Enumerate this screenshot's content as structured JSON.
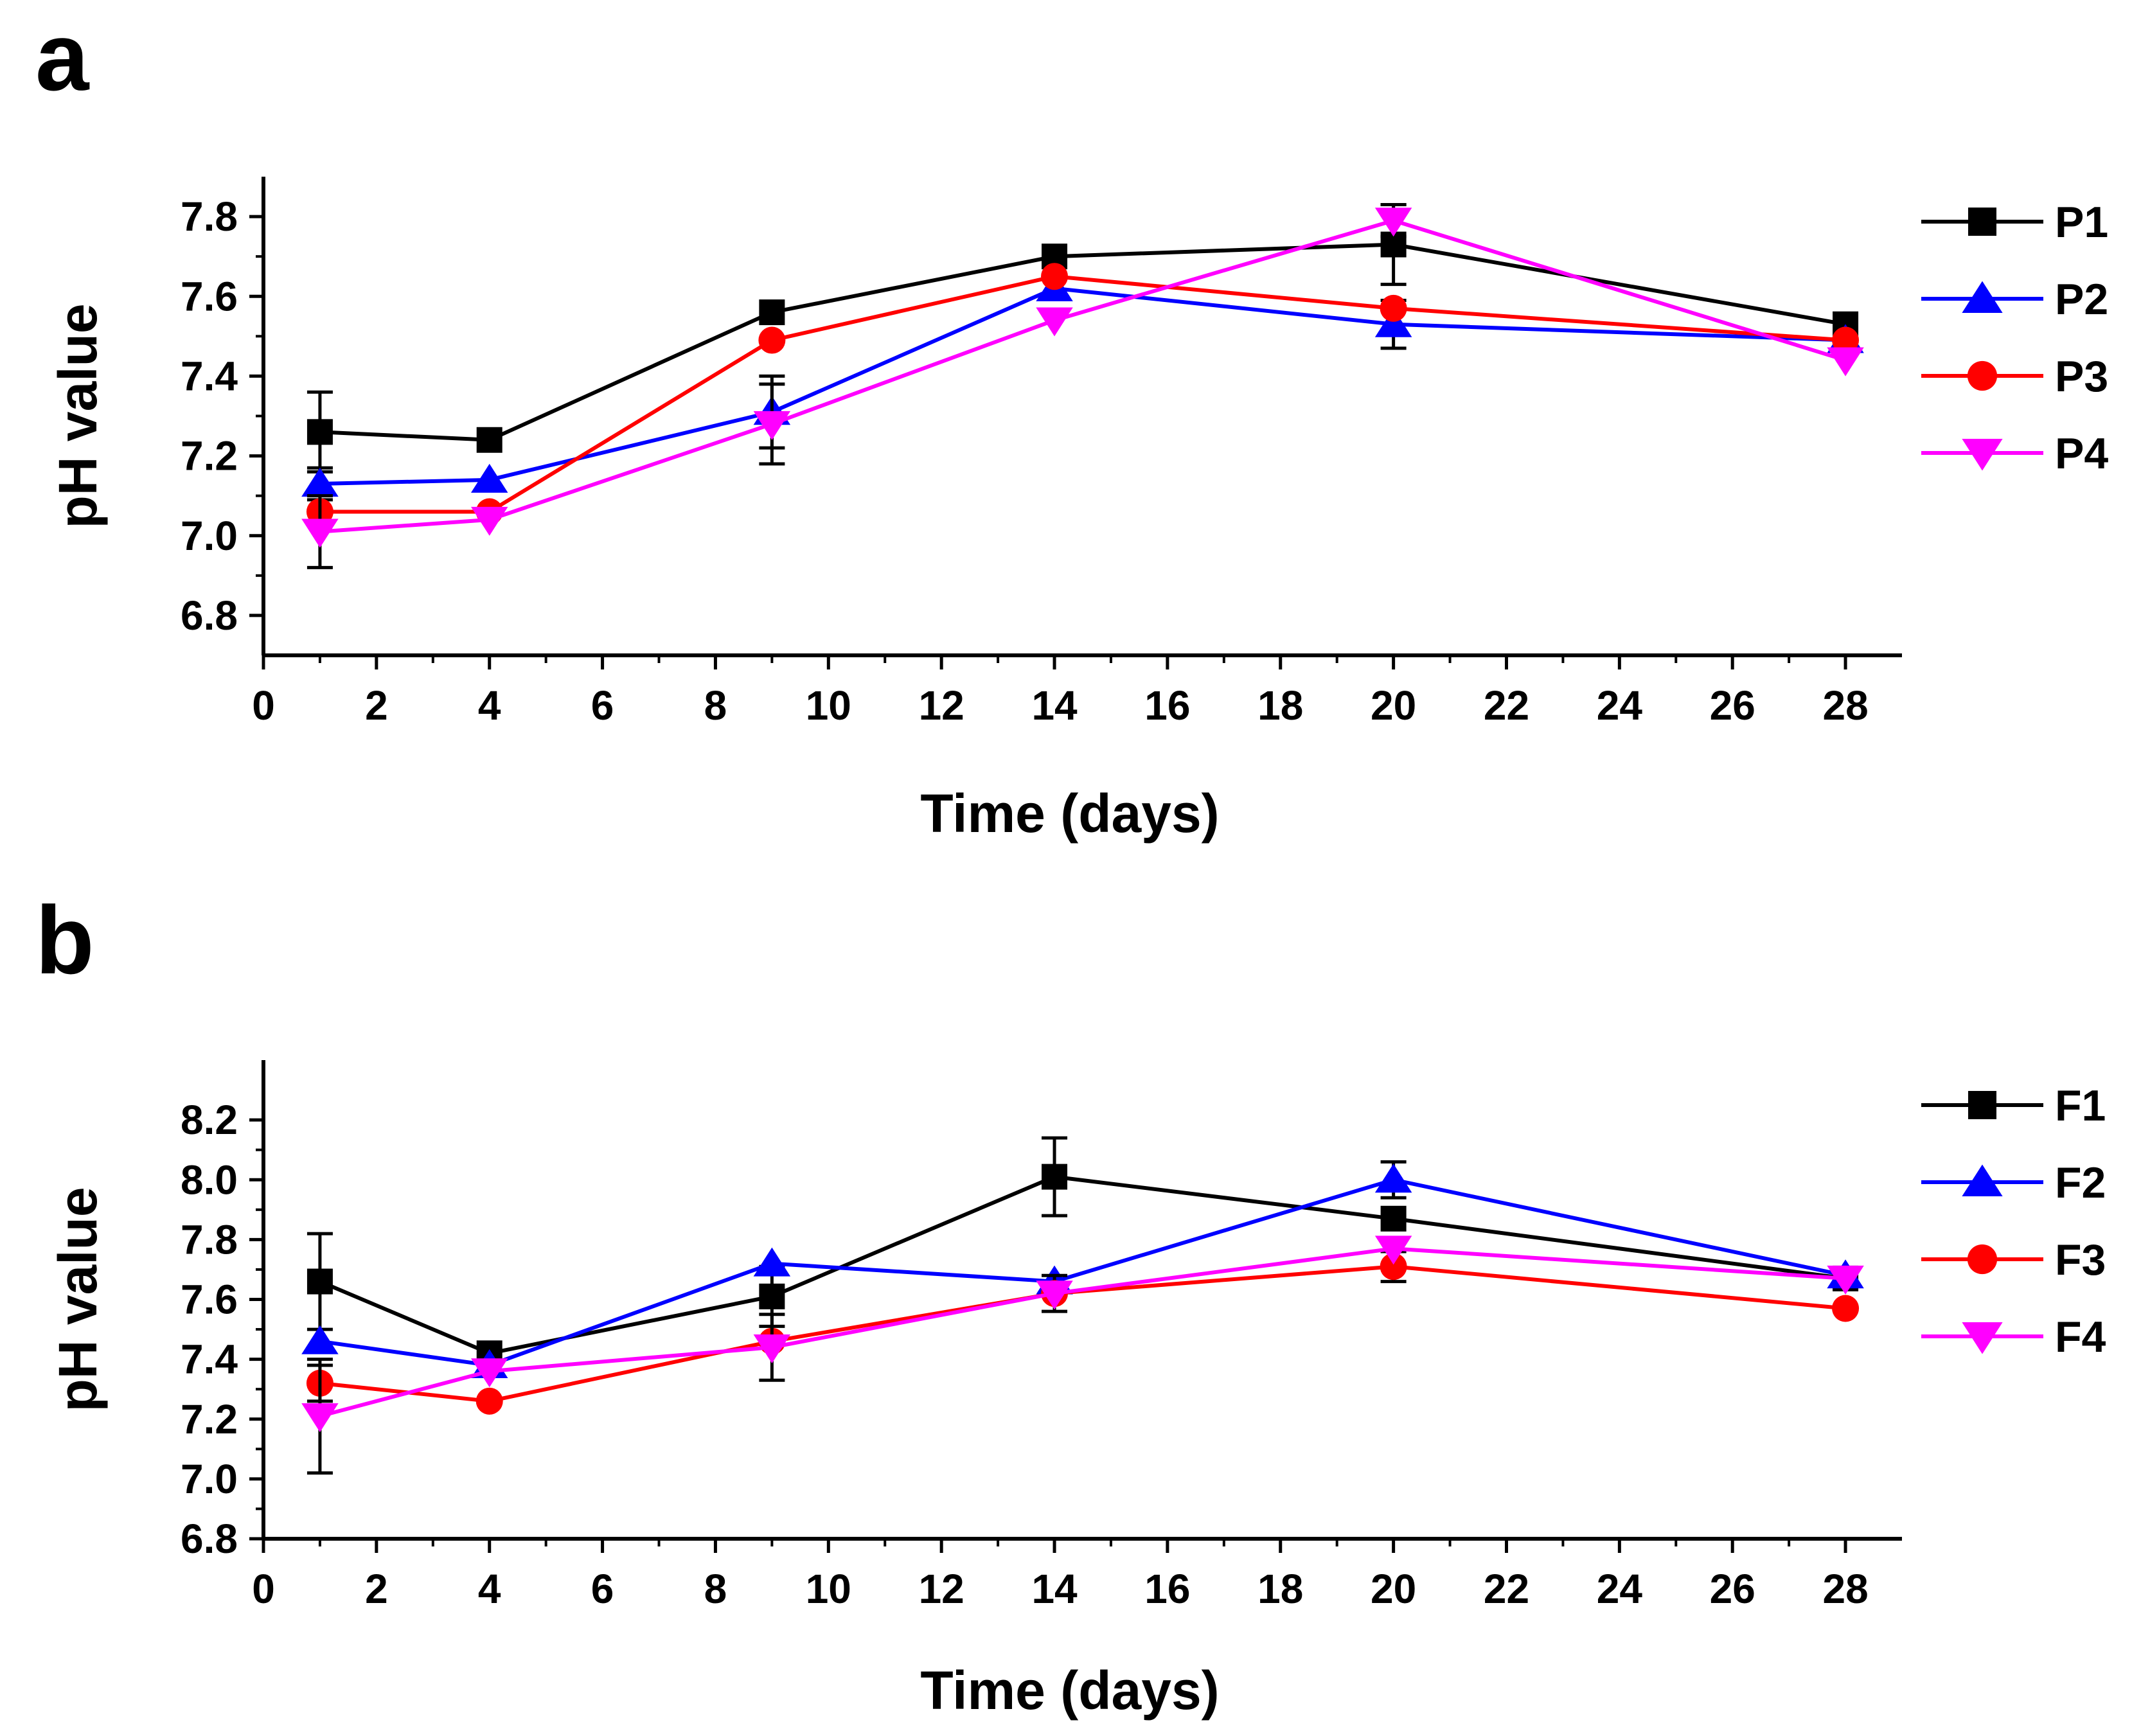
{
  "chart_data": [
    {
      "panel_label": "a",
      "type": "line",
      "xlabel": "Time (days)",
      "ylabel": "pH value",
      "xlim": [
        0,
        29
      ],
      "ylim": [
        6.7,
        7.9
      ],
      "xticks": [
        0,
        2,
        4,
        6,
        8,
        10,
        12,
        14,
        16,
        18,
        20,
        22,
        24,
        26,
        28
      ],
      "yticks": [
        6.8,
        7.0,
        7.2,
        7.4,
        7.6,
        7.8
      ],
      "x": [
        1,
        4,
        9,
        14,
        20,
        28
      ],
      "legend": "top-right outside",
      "series": [
        {
          "name": "P1",
          "color": "#000000",
          "marker": "square",
          "values": [
            7.26,
            7.24,
            7.56,
            7.7,
            7.73,
            7.53
          ],
          "errors": [
            0.1,
            0,
            0,
            0,
            0.1,
            0
          ]
        },
        {
          "name": "P2",
          "color": "#0000ff",
          "marker": "triangle-up",
          "values": [
            7.13,
            7.14,
            7.31,
            7.62,
            7.53,
            7.49
          ],
          "errors": [
            0.04,
            0,
            0.09,
            0,
            0.06,
            0
          ]
        },
        {
          "name": "P3",
          "color": "#ff0000",
          "marker": "circle",
          "values": [
            7.06,
            7.06,
            7.49,
            7.65,
            7.57,
            7.49
          ],
          "errors": [
            0,
            0,
            0,
            0,
            0,
            0
          ]
        },
        {
          "name": "P4",
          "color": "#ff00ff",
          "marker": "triangle-down",
          "values": [
            7.01,
            7.04,
            7.28,
            7.54,
            7.79,
            7.44
          ],
          "errors": [
            0.09,
            0,
            0.1,
            0,
            0.04,
            0
          ]
        }
      ]
    },
    {
      "panel_label": "b",
      "type": "line",
      "xlabel": "Time (days)",
      "ylabel": "pH value",
      "xlim": [
        0,
        29
      ],
      "ylim": [
        6.8,
        8.4
      ],
      "xticks": [
        0,
        2,
        4,
        6,
        8,
        10,
        12,
        14,
        16,
        18,
        20,
        22,
        24,
        26,
        28
      ],
      "yticks": [
        6.8,
        7.0,
        7.2,
        7.4,
        7.6,
        7.8,
        8.0,
        8.2
      ],
      "x": [
        1,
        4,
        9,
        14,
        20,
        28
      ],
      "legend": "top-right outside",
      "series": [
        {
          "name": "F1",
          "color": "#000000",
          "marker": "square",
          "values": [
            7.66,
            7.42,
            7.61,
            8.01,
            7.87,
            7.67
          ],
          "errors": [
            0.16,
            0,
            0.1,
            0.13,
            0,
            0
          ]
        },
        {
          "name": "F2",
          "color": "#0000ff",
          "marker": "triangle-up",
          "values": [
            7.46,
            7.38,
            7.72,
            7.66,
            8.0,
            7.68
          ],
          "errors": [
            0,
            0,
            0,
            0,
            0.06,
            0
          ]
        },
        {
          "name": "F3",
          "color": "#ff0000",
          "marker": "circle",
          "values": [
            7.32,
            7.26,
            7.46,
            7.62,
            7.71,
            7.57
          ],
          "errors": [
            0.06,
            0,
            0,
            0.06,
            0.05,
            0
          ]
        },
        {
          "name": "F4",
          "color": "#ff00ff",
          "marker": "triangle-down",
          "values": [
            7.21,
            7.36,
            7.44,
            7.62,
            7.77,
            7.67
          ],
          "errors": [
            0.19,
            0,
            0.11,
            0,
            0,
            0
          ]
        }
      ]
    }
  ]
}
